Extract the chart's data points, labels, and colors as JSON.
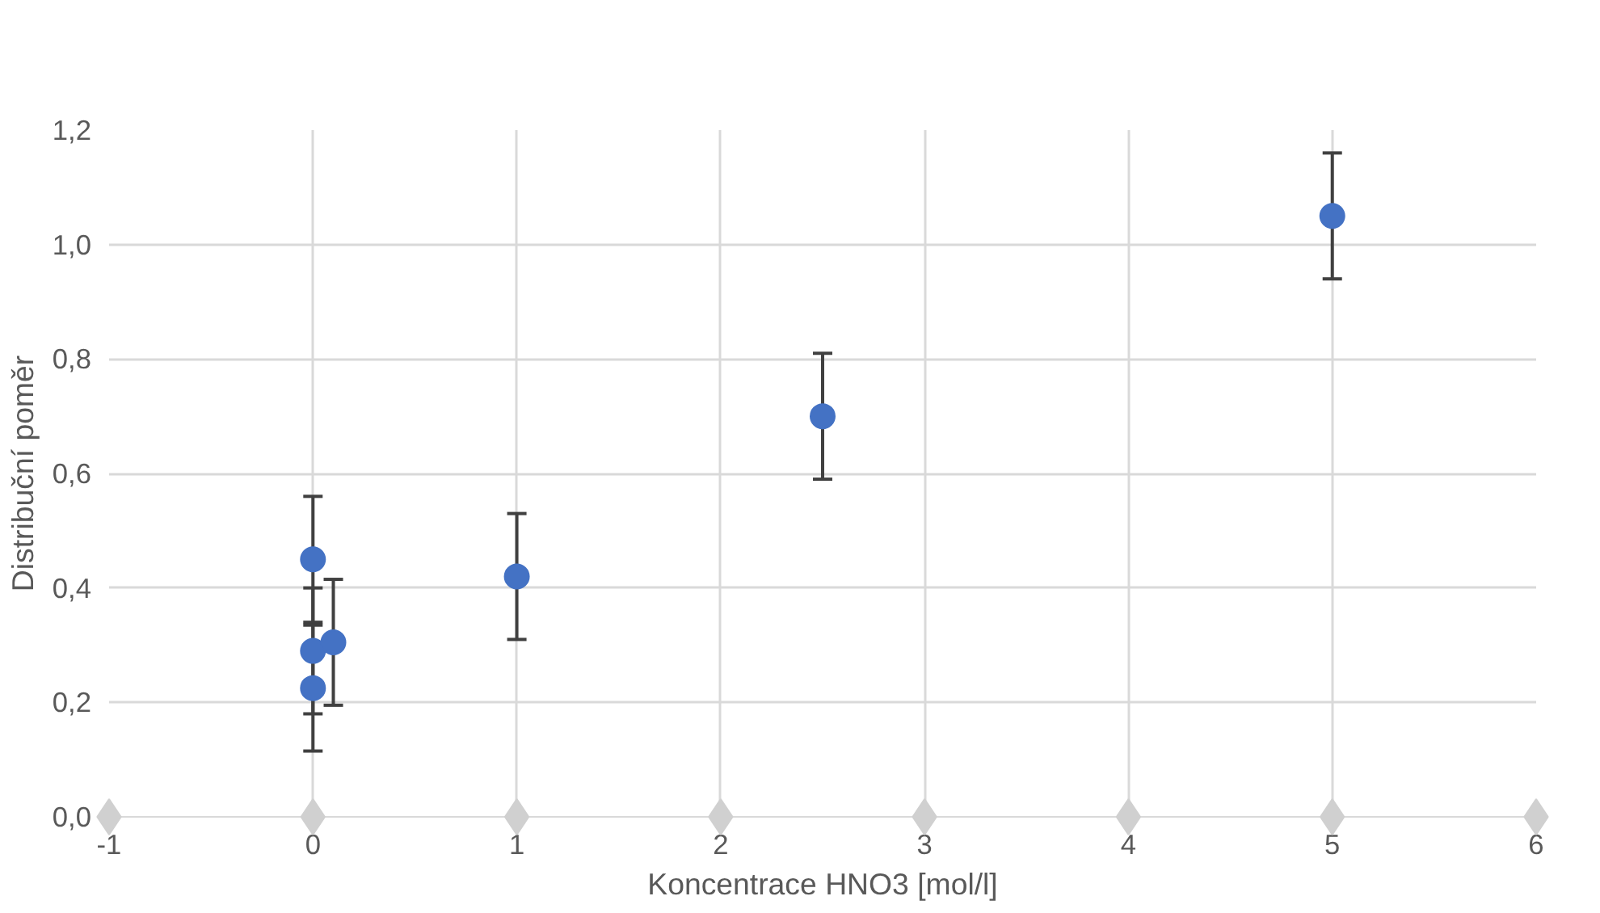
{
  "chart_data": {
    "type": "scatter",
    "xlabel": "Koncentrace HNO3 [mol/l]",
    "ylabel": "Distribuční poměr",
    "series": [
      {
        "color": "#4472c4",
        "marker": "circle",
        "x": [
          0,
          0,
          0,
          0.1,
          1,
          2.5,
          5
        ],
        "values": [
          0.45,
          0.29,
          0.225,
          0.305,
          0.42,
          0.7,
          1.05
        ],
        "errors": [
          0.11,
          0.11,
          0.11,
          0.11,
          0.11,
          0.11,
          0.11
        ]
      },
      {
        "color": "#d0d0d0",
        "marker": "diamond",
        "x": [
          -1,
          0,
          1,
          2,
          3,
          4,
          5,
          6
        ],
        "values": [
          0,
          0,
          0,
          0,
          0,
          0,
          0,
          0
        ]
      }
    ],
    "xlim": [
      -1,
      6
    ],
    "xticks": [
      {
        "value": -1,
        "label": "-1"
      },
      0,
      1,
      2,
      3,
      4,
      5,
      6
    ],
    "ylim": [
      0,
      1.2
    ],
    "yticks": [
      {
        "value": 0,
        "label": "0,0"
      },
      {
        "value": 0.2,
        "label": "0,2"
      },
      {
        "value": 0.4,
        "label": "0,4"
      },
      {
        "value": 0.6,
        "label": "0,6"
      },
      {
        "value": 0.8,
        "label": "0,8"
      },
      {
        "value": 1.0,
        "label": "1,0"
      },
      {
        "value": 1.2,
        "label": "1,2"
      }
    ],
    "grid": true
  }
}
